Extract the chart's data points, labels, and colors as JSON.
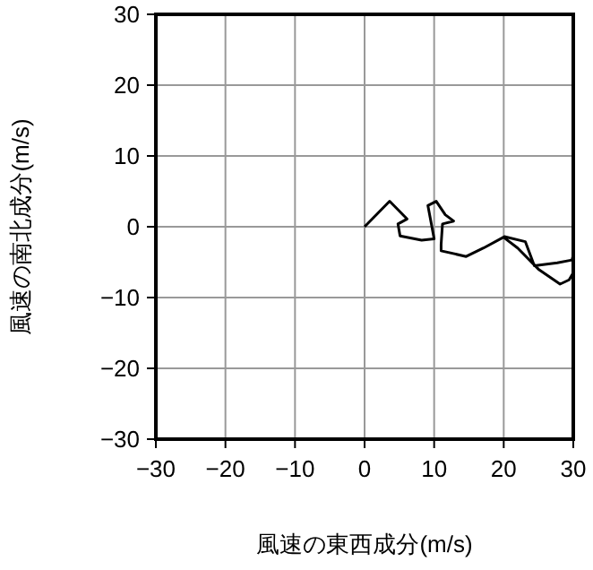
{
  "chart_data": {
    "type": "line",
    "xlabel": "風速の東西成分(m/s)",
    "ylabel": "風速の南北成分(m/s)",
    "xlim": [
      -30,
      30
    ],
    "ylim": [
      -30,
      30
    ],
    "xticks": [
      -30,
      -20,
      -10,
      0,
      10,
      20,
      30
    ],
    "yticks": [
      -30,
      -20,
      -10,
      0,
      10,
      20,
      30
    ],
    "grid": true,
    "series": [
      {
        "color": "#000000",
        "x": [
          0,
          3.6,
          6.1,
          4.8,
          5.1,
          8.2,
          10,
          9.1,
          10.3,
          11.6,
          12.8,
          11.2,
          11,
          11,
          14.6,
          17.1,
          20.1,
          23.1,
          24.4,
          27.7,
          29.8,
          30,
          30,
          29.4,
          28.1,
          25,
          22,
          20
        ],
        "values": [
          0,
          3.6,
          1.1,
          0.4,
          -1.3,
          -1.9,
          -1.7,
          3,
          3.6,
          1.7,
          0.8,
          0.4,
          -2.5,
          -3.4,
          -4.2,
          -3,
          -1.4,
          -2.1,
          -5.5,
          -5.1,
          -4.7,
          -4,
          -6.5,
          -7.5,
          -8.1,
          -6,
          -3,
          -1.5
        ]
      }
    ]
  }
}
